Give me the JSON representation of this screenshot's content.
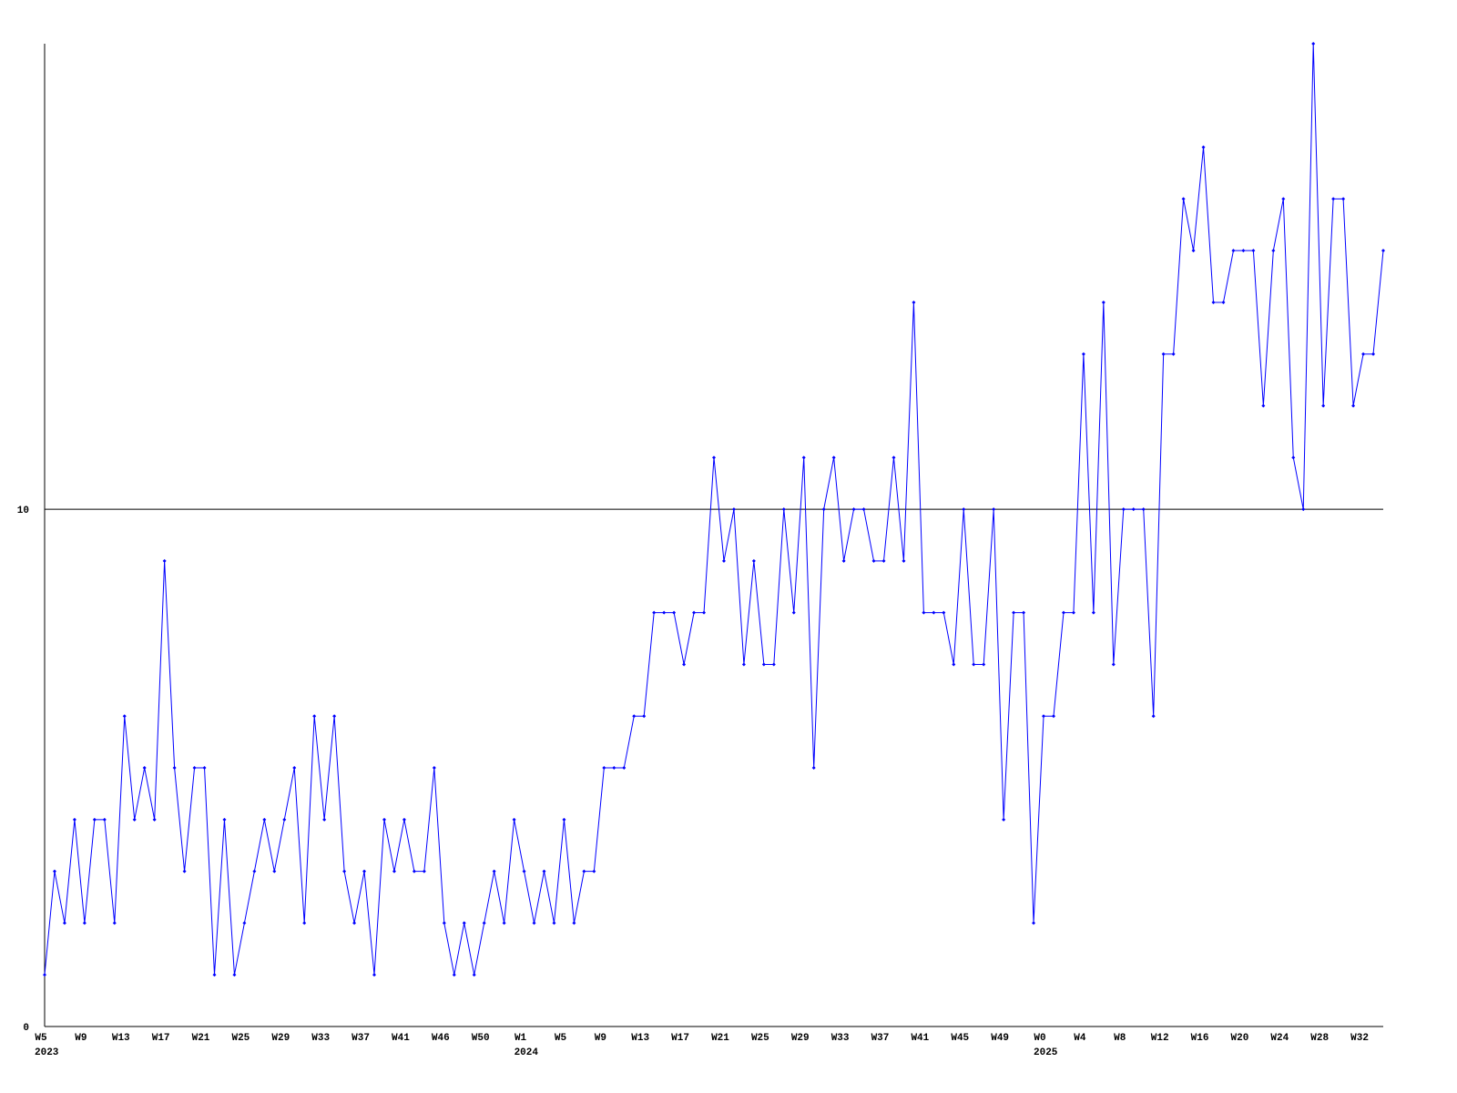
{
  "chart_data": {
    "type": "line",
    "categories": [
      "W5",
      null,
      null,
      null,
      "W9",
      null,
      null,
      null,
      "W13",
      null,
      null,
      null,
      "W17",
      null,
      null,
      null,
      "W21",
      null,
      null,
      null,
      "W25",
      null,
      null,
      null,
      "W29",
      null,
      null,
      null,
      "W33",
      null,
      null,
      null,
      "W37",
      null,
      null,
      null,
      "W41",
      null,
      null,
      null,
      "W46",
      null,
      null,
      null,
      "W50",
      null,
      null,
      null,
      "W1",
      null,
      null,
      null,
      "W5",
      null,
      null,
      null,
      "W9",
      null,
      null,
      null,
      "W13",
      null,
      null,
      null,
      "W17",
      null,
      null,
      null,
      "W21",
      null,
      null,
      null,
      "W25",
      null,
      null,
      null,
      "W29",
      null,
      null,
      null,
      "W33",
      null,
      null,
      null,
      "W37",
      null,
      null,
      null,
      "W41",
      null,
      null,
      null,
      "W45",
      null,
      null,
      null,
      "W49",
      null,
      null,
      null,
      "W0",
      null,
      null,
      null,
      "W4",
      null,
      null,
      null,
      "W8",
      null,
      null,
      null,
      "W12",
      null,
      null,
      null,
      "W16",
      null,
      null,
      null,
      "W20",
      null,
      null,
      null,
      "W24",
      null,
      null,
      null,
      "W28",
      null,
      null,
      null,
      "W32",
      null,
      null
    ],
    "years": [
      "2023",
      null,
      null,
      null,
      null,
      null,
      null,
      null,
      null,
      null,
      null,
      null,
      null,
      null,
      null,
      null,
      null,
      null,
      null,
      null,
      null,
      null,
      null,
      null,
      null,
      null,
      null,
      null,
      null,
      null,
      null,
      null,
      null,
      null,
      null,
      null,
      null,
      null,
      null,
      null,
      null,
      null,
      null,
      null,
      null,
      null,
      null,
      null,
      "2024",
      null,
      null,
      null,
      null,
      null,
      null,
      null,
      null,
      null,
      null,
      null,
      null,
      null,
      null,
      null,
      null,
      null,
      null,
      null,
      null,
      null,
      null,
      null,
      null,
      null,
      null,
      null,
      null,
      null,
      null,
      null,
      null,
      null,
      null,
      null,
      null,
      null,
      null,
      null,
      null,
      null,
      null,
      null,
      null,
      null,
      null,
      null,
      null,
      null,
      null,
      null,
      "2025",
      null,
      null,
      null,
      null,
      null,
      null,
      null,
      null,
      null,
      null,
      null,
      null,
      null,
      null,
      null,
      null,
      null,
      null,
      null,
      null,
      null,
      null,
      null,
      null,
      null,
      null,
      null,
      null,
      null,
      null,
      null,
      null,
      null,
      null
    ],
    "series": [
      {
        "color": "#0000ff",
        "values": [
          1,
          3,
          2,
          4,
          2,
          4,
          4,
          2,
          6,
          4,
          5,
          4,
          9,
          5,
          3,
          5,
          5,
          1,
          4,
          1,
          2,
          3,
          4,
          3,
          4,
          5,
          2,
          6,
          4,
          6,
          3,
          2,
          3,
          1,
          4,
          3,
          4,
          3,
          3,
          5,
          2,
          1,
          2,
          1,
          2,
          3,
          2,
          4,
          3,
          2,
          3,
          2,
          4,
          2,
          3,
          3,
          5,
          5,
          5,
          6,
          6,
          8,
          8,
          8,
          7,
          8,
          8,
          11,
          9,
          10,
          7,
          9,
          7,
          7,
          10,
          8,
          11,
          5,
          10,
          11,
          9,
          10,
          10,
          9,
          9,
          11,
          9,
          14,
          8,
          8,
          8,
          7,
          10,
          7,
          7,
          10,
          4,
          8,
          8,
          2,
          6,
          6,
          8,
          8,
          13,
          8,
          14,
          7,
          10,
          10,
          10,
          6,
          13,
          13,
          16,
          15,
          17,
          14,
          14,
          15,
          15,
          15,
          12,
          15,
          16,
          11,
          10,
          19,
          12,
          16,
          16,
          12,
          13,
          13,
          15
        ]
      }
    ],
    "ylim": [
      0,
      19
    ],
    "yticks": [
      0,
      10
    ],
    "grid": true
  }
}
